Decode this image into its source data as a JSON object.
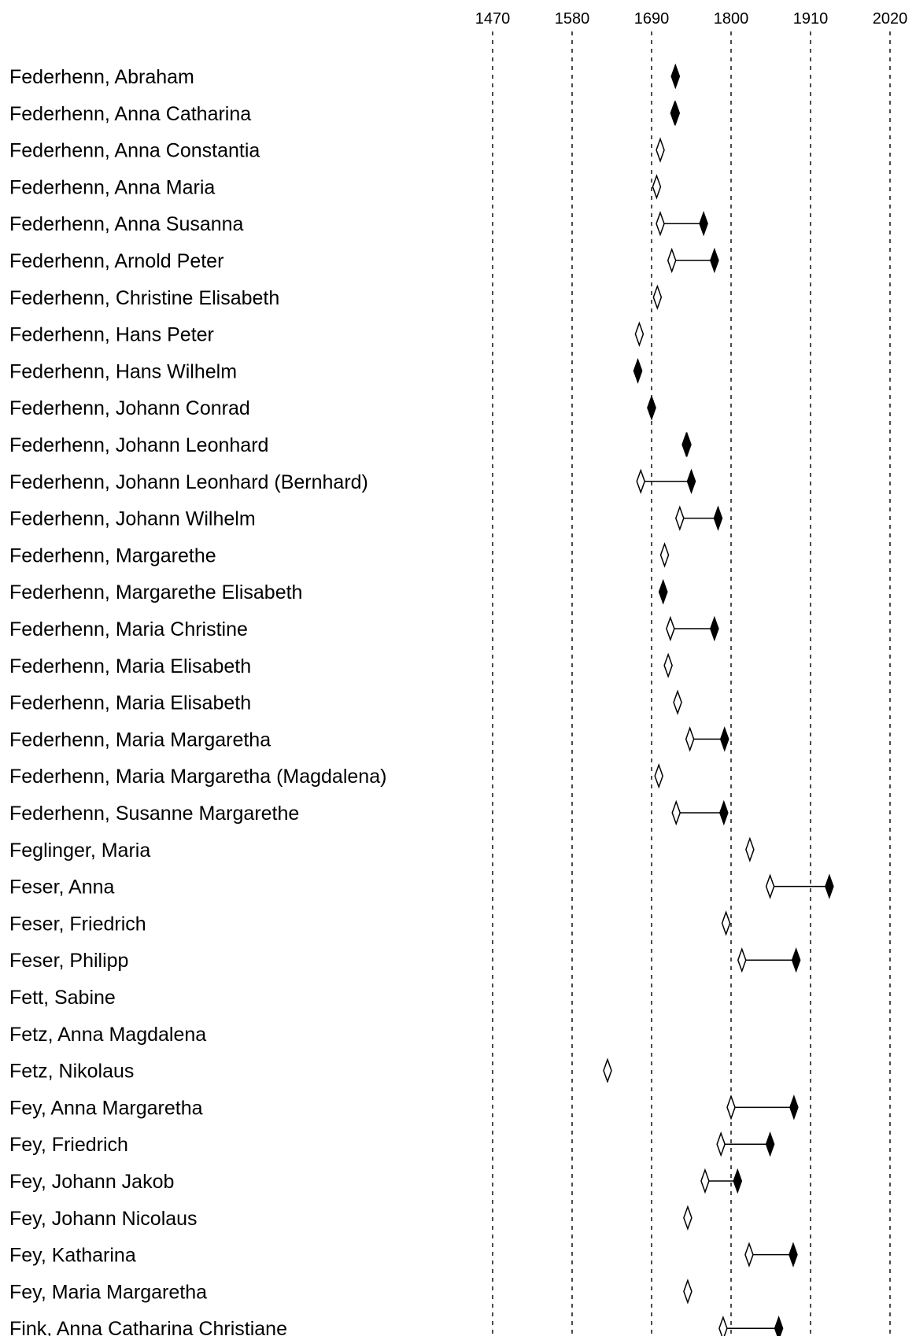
{
  "chart_data": {
    "type": "scatter",
    "title": "",
    "xlabel": "",
    "ylabel": "",
    "xlim": [
      1435,
      2020
    ],
    "x_ticks": [
      "1470",
      "1580",
      "1690",
      "1800",
      "1910",
      "2020"
    ],
    "grid": "vertical-dashed",
    "legend": "none",
    "marker_meaning_shown": false,
    "colors": {
      "open_marker_fill": "#ffffff",
      "filled_marker_fill": "#000000",
      "line": "#000000"
    },
    "rows": [
      {
        "name": "Federhenn, Abraham",
        "start": 1723,
        "end": 1723
      },
      {
        "name": "Federhenn, Anna Catharina",
        "start": 1722,
        "end": 1723
      },
      {
        "name": "Federhenn, Anna Constantia",
        "start": 1702,
        "end": null
      },
      {
        "name": "Federhenn, Anna Maria",
        "start": 1697,
        "end": null
      },
      {
        "name": "Federhenn, Anna Susanna",
        "start": 1702,
        "end": 1762
      },
      {
        "name": "Federhenn, Arnold Peter",
        "start": 1718,
        "end": 1777
      },
      {
        "name": "Federhenn, Christine Elisabeth",
        "start": 1698,
        "end": null
      },
      {
        "name": "Federhenn, Hans Peter",
        "start": 1673,
        "end": null
      },
      {
        "name": "Federhenn, Hans Wilhelm",
        "start": 1671,
        "end": 1671
      },
      {
        "name": "Federhenn, Johann Conrad",
        "start": 1690,
        "end": 1690
      },
      {
        "name": "Federhenn, Johann Leonhard",
        "start": 1738,
        "end": 1739
      },
      {
        "name": "Federhenn, Johann Leonhard (Bernhard)",
        "start": 1675,
        "end": 1745
      },
      {
        "name": "Federhenn, Johann Wilhelm",
        "start": 1729,
        "end": 1782
      },
      {
        "name": "Federhenn, Margarethe",
        "start": 1708,
        "end": null
      },
      {
        "name": "Federhenn, Margarethe Elisabeth",
        "start": 1706,
        "end": 1706
      },
      {
        "name": "Federhenn, Maria Christine",
        "start": 1716,
        "end": 1777
      },
      {
        "name": "Federhenn, Maria Elisabeth",
        "start": 1713,
        "end": null
      },
      {
        "name": "Federhenn, Maria Elisabeth",
        "start": 1726,
        "end": null
      },
      {
        "name": "Federhenn, Maria Margaretha",
        "start": 1743,
        "end": 1791
      },
      {
        "name": "Federhenn, Maria Margaretha (Magdalena)",
        "start": 1700,
        "end": null
      },
      {
        "name": "Federhenn, Susanne Margarethe",
        "start": 1724,
        "end": 1790
      },
      {
        "name": "Feglinger, Maria",
        "start": 1826,
        "end": null
      },
      {
        "name": "Feser, Anna",
        "start": 1854,
        "end": 1936
      },
      {
        "name": "Feser, Friedrich",
        "start": 1793,
        "end": null
      },
      {
        "name": "Feser, Philipp",
        "start": 1815,
        "end": 1890
      },
      {
        "name": "Fett, Sabine",
        "start": null,
        "end": null
      },
      {
        "name": "Fetz, Anna Magdalena",
        "start": null,
        "end": null
      },
      {
        "name": "Fetz, Nikolaus",
        "start": 1629,
        "end": null
      },
      {
        "name": "Fey, Anna Margaretha",
        "start": 1800,
        "end": 1887
      },
      {
        "name": "Fey, Friedrich",
        "start": 1786,
        "end": 1854
      },
      {
        "name": "Fey, Johann Jakob",
        "start": 1764,
        "end": 1809
      },
      {
        "name": "Fey, Johann Nicolaus",
        "start": 1740,
        "end": null
      },
      {
        "name": "Fey, Katharina",
        "start": 1825,
        "end": 1886
      },
      {
        "name": "Fey, Maria Margaretha",
        "start": 1740,
        "end": null
      },
      {
        "name": "Fink, Anna Catharina Christiane",
        "start": 1789,
        "end": 1866
      }
    ]
  }
}
